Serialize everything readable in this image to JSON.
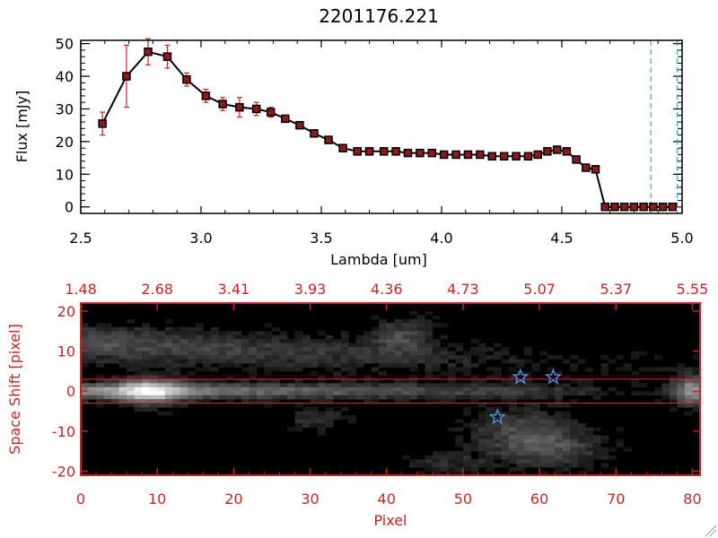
{
  "chart_data": [
    {
      "type": "line",
      "title": "2201176.221",
      "xlabel": "Lambda [um]",
      "ylabel": "Flux [mJy]",
      "xlim": [
        2.5,
        5.0
      ],
      "ylim": [
        -2,
        51
      ],
      "xticks": [
        "2.5",
        "3.0",
        "3.5",
        "4.0",
        "4.5",
        "5.0"
      ],
      "xtick_values": [
        2.5,
        3.0,
        3.5,
        4.0,
        4.5,
        5.0
      ],
      "yticks": [
        "0",
        "10",
        "20",
        "30",
        "40",
        "50"
      ],
      "ytick_values": [
        0,
        10,
        20,
        30,
        40,
        50
      ],
      "colors": {
        "line": "#000000",
        "marker": "#8b1a1a",
        "errorbar": "#cc2222",
        "vline": "#3fa7c9",
        "baseline": "#cc2222"
      },
      "series": [
        {
          "x": [
            2.59,
            2.69,
            2.78,
            2.86,
            2.94,
            3.02,
            3.09,
            3.16,
            3.23,
            3.29,
            3.35,
            3.41,
            3.47,
            3.53,
            3.59,
            3.65,
            3.7,
            3.76,
            3.81,
            3.86,
            3.91,
            3.96,
            4.01,
            4.06,
            4.11,
            4.16,
            4.21,
            4.26,
            4.31,
            4.36,
            4.4,
            4.44,
            4.48,
            4.52,
            4.56,
            4.6,
            4.64,
            4.68,
            4.72,
            4.76,
            4.8,
            4.84,
            4.88,
            4.92,
            4.96
          ],
          "y": [
            25.5,
            40,
            47.5,
            46,
            39,
            34,
            31.5,
            30.5,
            30,
            29,
            27,
            25,
            22.5,
            20.5,
            18,
            17,
            17,
            17,
            17,
            16.5,
            16.5,
            16.5,
            16,
            16,
            16,
            16,
            15.5,
            15.5,
            15.5,
            15.5,
            16,
            17,
            17.5,
            17,
            14.5,
            12,
            11.5,
            0,
            0,
            0,
            0,
            0,
            0,
            0,
            0
          ],
          "yerr": [
            3.5,
            9.5,
            4,
            3.5,
            2,
            2,
            2,
            3,
            2,
            1.5,
            1,
            0.8,
            0.6,
            0.6,
            0.6,
            0.6,
            0.6,
            0.6,
            0.6,
            0.6,
            0.6,
            0.6,
            0.6,
            0.6,
            0.6,
            0.6,
            0.6,
            0.6,
            0.6,
            0.6,
            0.6,
            0.6,
            0.6,
            0.6,
            0.6,
            0.6,
            0.6,
            0.6,
            0.6,
            0,
            0,
            0,
            0,
            0,
            0
          ]
        }
      ],
      "vlines": [
        4.87,
        4.98
      ]
    },
    {
      "type": "heatmap",
      "xlabel": "Pixel",
      "ylabel": "Space Shift [pixel]",
      "xlim": [
        0,
        81
      ],
      "ylim": [
        -21,
        22
      ],
      "xticks": [
        "0",
        "10",
        "20",
        "30",
        "40",
        "50",
        "60",
        "70",
        "80"
      ],
      "xtick_values": [
        0,
        10,
        20,
        30,
        40,
        50,
        60,
        70,
        80
      ],
      "top_ticks": [
        "1.48",
        "2.68",
        "3.41",
        "3.93",
        "4.36",
        "4.73",
        "5.07",
        "5.37",
        "5.55"
      ],
      "yticks": [
        "-20",
        "-10",
        "0",
        "10",
        "20"
      ],
      "ytick_values": [
        -20,
        -10,
        0,
        10,
        20
      ],
      "hlines": [
        3,
        -3
      ],
      "stars": [
        {
          "x": 57.5,
          "y": 3.5
        },
        {
          "x": 61.8,
          "y": 3.5
        },
        {
          "x": 54.5,
          "y": -6.5
        }
      ],
      "colors": {
        "axes": "#cc2222",
        "star": "#4a8fe0"
      }
    }
  ]
}
